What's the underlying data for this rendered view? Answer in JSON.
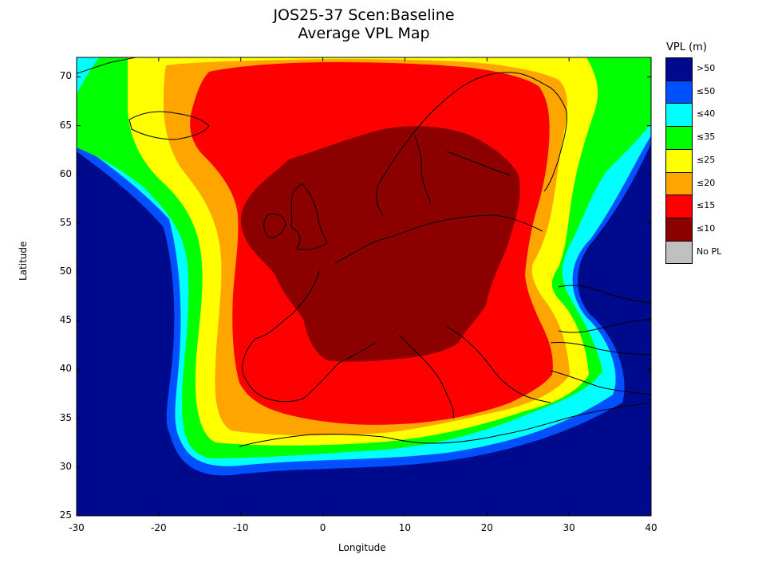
{
  "title": {
    "line1": "JOS25-37 Scen:Baseline",
    "line2": "Average VPL Map"
  },
  "legend": {
    "title": "VPL (m)",
    "items": [
      {
        "label": ">50",
        "color": "#000a8c"
      },
      {
        "label": "≤50",
        "color": "#0050ff"
      },
      {
        "label": "≤40",
        "color": "#00ffff"
      },
      {
        "label": "≤35",
        "color": "#00ff00"
      },
      {
        "label": "≤25",
        "color": "#ffff00"
      },
      {
        "label": "≤20",
        "color": "#ffa500"
      },
      {
        "label": "≤15",
        "color": "#ff0000"
      },
      {
        "label": "≤10",
        "color": "#8c0000"
      },
      {
        "label": "No PL",
        "color": "#c0c0c0"
      }
    ]
  },
  "axes": {
    "xlabel": "Longitude",
    "ylabel": "Latitude",
    "xlim": [
      -30,
      40
    ],
    "ylim": [
      25,
      72
    ],
    "xticks": [
      "-30",
      "-20",
      "-10",
      "0",
      "10",
      "20",
      "30",
      "40"
    ],
    "yticks": [
      "25",
      "30",
      "35",
      "40",
      "45",
      "50",
      "55",
      "60",
      "65",
      "70"
    ]
  }
}
